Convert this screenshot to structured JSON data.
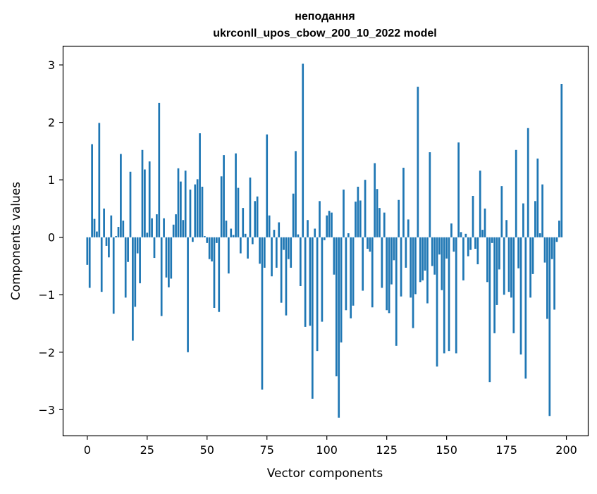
{
  "chart_data": {
    "type": "bar",
    "title_line1": "неподання",
    "title_line2": "ukrconll_upos_cbow_200_10_2022 model",
    "xlabel": "Vector components",
    "ylabel": "Components values",
    "xlim": [
      -9.95,
      208.95
    ],
    "ylim": [
      -3.45,
      3.32
    ],
    "xticks": [
      0,
      25,
      50,
      75,
      100,
      125,
      150,
      175,
      200
    ],
    "xtick_labels": [
      "0",
      "25",
      "50",
      "75",
      "100",
      "125",
      "150",
      "175",
      "200"
    ],
    "yticks": [
      -3,
      -2,
      -1,
      0,
      1,
      2,
      3
    ],
    "ytick_labels": [
      "−3",
      "−2",
      "−1",
      "0",
      "1",
      "2",
      "3"
    ],
    "bar_color": "#1f77b4",
    "values": [
      -0.48,
      -0.88,
      1.62,
      0.32,
      0.1,
      1.99,
      -0.95,
      0.5,
      -0.15,
      -0.35,
      0.38,
      -1.33,
      0.02,
      0.18,
      1.45,
      0.29,
      -1.05,
      -0.43,
      1.14,
      -1.8,
      -1.21,
      -0.28,
      -0.8,
      1.52,
      1.18,
      0.08,
      1.32,
      0.33,
      -0.36,
      0.4,
      2.34,
      -1.37,
      0.33,
      -0.7,
      -0.87,
      -0.72,
      0.22,
      0.4,
      1.2,
      0.97,
      0.3,
      1.16,
      -2.0,
      0.83,
      -0.08,
      0.92,
      1.01,
      1.81,
      0.88,
      0.02,
      -0.1,
      -0.38,
      -0.42,
      -1.23,
      -0.1,
      -1.3,
      1.06,
      1.43,
      0.29,
      -0.63,
      0.15,
      0.04,
      1.46,
      0.86,
      -0.28,
      0.51,
      0.06,
      -0.37,
      1.04,
      -0.12,
      0.63,
      0.71,
      -0.46,
      -2.65,
      -0.53,
      1.79,
      0.38,
      -0.68,
      0.13,
      -0.53,
      0.26,
      -1.14,
      -0.22,
      -1.36,
      -0.38,
      -0.53,
      0.76,
      1.5,
      0.05,
      -0.85,
      3.02,
      -1.56,
      0.3,
      -1.54,
      -2.81,
      0.15,
      -1.98,
      0.63,
      -1.47,
      -0.05,
      0.38,
      0.46,
      0.43,
      -0.65,
      -2.42,
      -3.14,
      -1.83,
      0.83,
      -1.27,
      0.07,
      -1.41,
      -1.19,
      0.62,
      0.88,
      0.64,
      -0.93,
      1.0,
      -0.2,
      -0.25,
      -1.22,
      1.29,
      0.84,
      0.51,
      -0.88,
      0.43,
      -1.27,
      -1.32,
      -0.82,
      -0.4,
      -1.89,
      0.65,
      -1.03,
      1.21,
      -0.53,
      0.31,
      -1.05,
      -1.58,
      -0.99,
      2.62,
      -0.78,
      -0.75,
      -0.58,
      -1.15,
      1.48,
      -0.5,
      -0.65,
      -2.25,
      -0.3,
      -0.92,
      -2.02,
      -0.37,
      -1.98,
      0.24,
      -0.25,
      -2.02,
      1.65,
      0.09,
      -0.75,
      0.06,
      -0.33,
      -0.22,
      0.72,
      -0.2,
      -0.47,
      1.16,
      0.13,
      0.5,
      -0.78,
      -2.52,
      -0.1,
      -1.67,
      -1.18,
      -0.56,
      0.89,
      -1.0,
      0.3,
      -0.95,
      -1.05,
      -1.67,
      1.52,
      -0.54,
      -2.04,
      0.59,
      -2.46,
      1.9,
      -1.05,
      -0.64,
      0.63,
      1.37,
      0.07,
      0.92,
      -0.44,
      -1.42,
      -3.11,
      -0.38,
      -1.26,
      -0.08,
      0.29,
      2.67
    ]
  }
}
